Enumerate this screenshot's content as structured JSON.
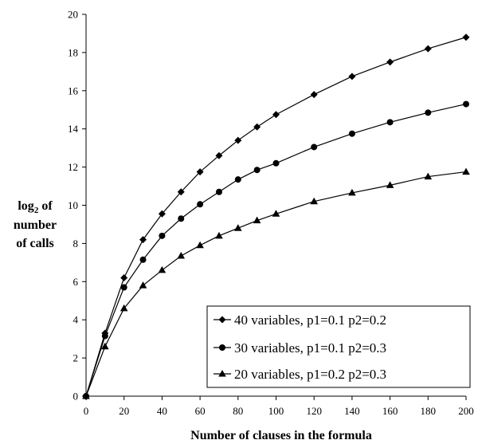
{
  "chart_data": {
    "type": "line",
    "xlabel": "Number of clauses in the formula",
    "ylabel_lines": [
      "log",
      "of",
      "number",
      "of calls"
    ],
    "ylabel_sub": "2",
    "xlim": [
      0,
      200
    ],
    "ylim": [
      0,
      20
    ],
    "x_ticks": [
      0,
      20,
      40,
      60,
      80,
      100,
      120,
      140,
      160,
      180,
      200
    ],
    "y_ticks": [
      0,
      2,
      4,
      6,
      8,
      10,
      12,
      14,
      16,
      18,
      20
    ],
    "grid": false,
    "legend_position": "lower-right",
    "series": [
      {
        "name": "40 variables, p1=0.1 p2=0.2",
        "marker": "diamond",
        "x": [
          0,
          10,
          20,
          30,
          40,
          50,
          60,
          70,
          80,
          90,
          100,
          120,
          140,
          160,
          180,
          200
        ],
        "y": [
          0,
          3.3,
          6.2,
          8.2,
          9.55,
          10.7,
          11.75,
          12.6,
          13.4,
          14.1,
          14.75,
          15.8,
          16.75,
          17.5,
          18.2,
          18.8
        ]
      },
      {
        "name": "30 variables, p1=0.1 p2=0.3",
        "marker": "circle",
        "x": [
          0,
          10,
          20,
          30,
          40,
          50,
          60,
          70,
          80,
          90,
          100,
          120,
          140,
          160,
          180,
          200
        ],
        "y": [
          0,
          3.15,
          5.7,
          7.15,
          8.4,
          9.3,
          10.05,
          10.7,
          11.35,
          11.85,
          12.2,
          13.05,
          13.75,
          14.35,
          14.85,
          15.3
        ]
      },
      {
        "name": "20 variables, p1=0.2 p2=0.3",
        "marker": "triangle",
        "x": [
          0,
          10,
          20,
          30,
          40,
          50,
          60,
          70,
          80,
          90,
          100,
          120,
          140,
          160,
          180,
          200
        ],
        "y": [
          0,
          2.6,
          4.6,
          5.8,
          6.6,
          7.35,
          7.9,
          8.4,
          8.8,
          9.2,
          9.55,
          10.2,
          10.65,
          11.05,
          11.5,
          11.75
        ]
      }
    ]
  }
}
